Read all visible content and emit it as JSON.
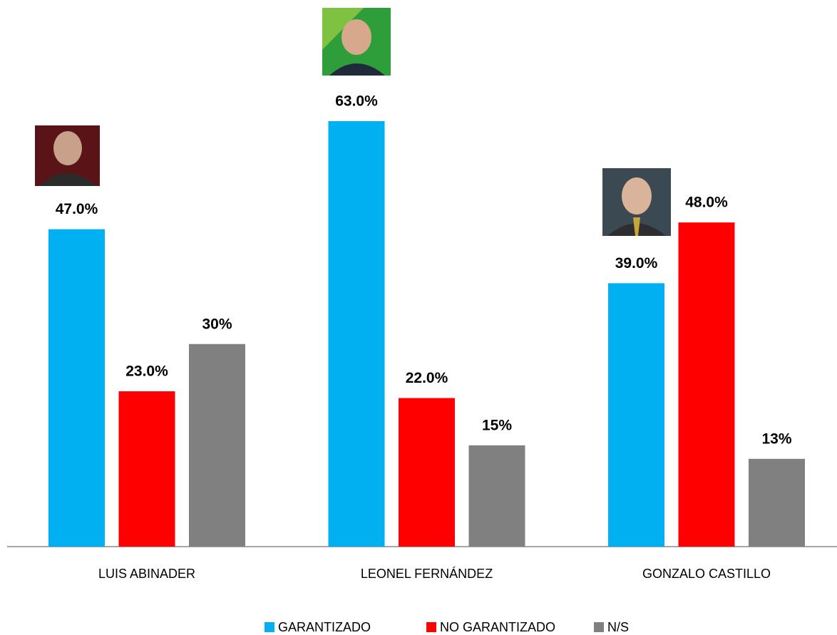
{
  "chart_data": {
    "type": "bar",
    "categories": [
      "LUIS ABINADER",
      "LEONEL FERNÁNDEZ",
      "GONZALO CASTILLO"
    ],
    "series": [
      {
        "name": "GARANTIZADO",
        "color": "#00b0f0",
        "values": [
          47,
          63,
          39
        ],
        "value_labels": [
          "47.0%",
          "63.0%",
          "39.0%"
        ]
      },
      {
        "name": "NO GARANTIZADO",
        "color": "#ff0000",
        "values": [
          23,
          22,
          48
        ],
        "value_labels": [
          "23.0%",
          "22.0%",
          "48.0%"
        ]
      },
      {
        "name": "N/S",
        "color": "#808080",
        "values": [
          30,
          15,
          13
        ],
        "value_labels": [
          "30%",
          "15%",
          "13%"
        ]
      }
    ],
    "legend": "bottom"
  }
}
